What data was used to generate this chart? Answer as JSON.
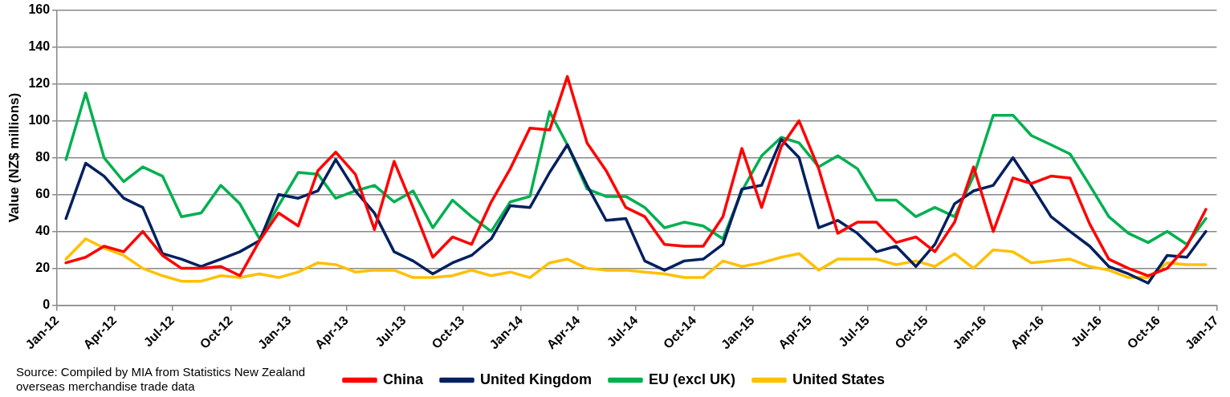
{
  "chart_data": {
    "type": "line",
    "ylabel": "Value (NZ$ millions)",
    "x": [
      "2012-01-15",
      "2012-02-15",
      "2012-03-15",
      "2012-04-15",
      "2012-05-15",
      "2012-06-15",
      "2012-07-15",
      "2012-08-15",
      "2012-09-15",
      "2012-10-15",
      "2012-11-15",
      "2012-12-15",
      "2013-01-15",
      "2013-02-15",
      "2013-03-15",
      "2013-04-15",
      "2013-05-15",
      "2013-06-15",
      "2013-07-15",
      "2013-08-15",
      "2013-09-15",
      "2013-10-15",
      "2013-11-15",
      "2013-12-15",
      "2014-01-15",
      "2014-02-15",
      "2014-03-15",
      "2014-04-15",
      "2014-05-15",
      "2014-06-15",
      "2014-07-15",
      "2014-08-15",
      "2014-09-15",
      "2014-10-15",
      "2014-11-15",
      "2014-12-15",
      "2015-01-15",
      "2015-02-15",
      "2015-03-15",
      "2015-04-15",
      "2015-05-15",
      "2015-06-15",
      "2015-07-15",
      "2015-08-15",
      "2015-09-15",
      "2015-10-15",
      "2015-11-15",
      "2015-12-15",
      "2016-01-15",
      "2016-02-15",
      "2016-03-15",
      "2016-04-15",
      "2016-05-15",
      "2016-06-15",
      "2016-07-15",
      "2016-08-15",
      "2016-09-15",
      "2016-10-15",
      "2016-11-15",
      "2016-12-15"
    ],
    "series": [
      {
        "name": "China",
        "color": "#ff0000",
        "values": [
          23,
          26,
          32,
          29,
          40,
          27,
          20,
          20,
          21,
          16,
          35,
          50,
          43,
          73,
          83,
          71,
          41,
          78,
          53,
          26,
          37,
          33,
          56,
          74,
          96,
          95,
          124,
          88,
          73,
          53,
          48,
          33,
          32,
          32,
          48,
          85,
          53,
          86,
          100,
          74,
          39,
          45,
          45,
          34,
          37,
          29,
          45,
          75,
          40,
          69,
          66,
          70,
          69,
          44,
          25,
          20,
          16,
          20,
          32,
          52
        ]
      },
      {
        "name": "United Kingdom",
        "color": "#002060",
        "values": [
          47,
          77,
          70,
          58,
          53,
          28,
          25,
          21,
          25,
          29,
          35,
          60,
          58,
          62,
          79,
          62,
          50,
          29,
          24,
          17,
          23,
          27,
          36,
          54,
          53,
          72,
          87,
          65,
          46,
          47,
          24,
          19,
          24,
          25,
          33,
          63,
          65,
          90,
          80,
          42,
          46,
          39,
          29,
          32,
          21,
          33,
          55,
          62,
          65,
          80,
          65,
          48,
          40,
          32,
          21,
          17,
          12,
          27,
          26,
          40
        ]
      },
      {
        "name": "EU (excl UK)",
        "color": "#00b050",
        "values": [
          79,
          115,
          80,
          67,
          75,
          70,
          48,
          50,
          65,
          55,
          36,
          54,
          72,
          71,
          58,
          62,
          65,
          56,
          62,
          42,
          57,
          48,
          40,
          56,
          59,
          105,
          87,
          63,
          59,
          59,
          53,
          42,
          45,
          43,
          36,
          62,
          81,
          91,
          88,
          75,
          81,
          74,
          57,
          57,
          48,
          53,
          48,
          70,
          103,
          103,
          92,
          87,
          82,
          65,
          48,
          39,
          34,
          40,
          33,
          47
        ]
      },
      {
        "name": "United States",
        "color": "#ffc000",
        "values": [
          25,
          36,
          31,
          27,
          20,
          16,
          13,
          13,
          16,
          15,
          17,
          15,
          18,
          23,
          22,
          18,
          19,
          19,
          15,
          15,
          16,
          19,
          16,
          18,
          15,
          23,
          25,
          20,
          19,
          19,
          18,
          17,
          15,
          15,
          24,
          21,
          23,
          26,
          28,
          19,
          25,
          25,
          25,
          22,
          24,
          21,
          28,
          20,
          30,
          29,
          23,
          24,
          25,
          21,
          19,
          15,
          15,
          23,
          22,
          22
        ]
      }
    ],
    "xlim": [
      "2012-01-01",
      "2017-01-01"
    ],
    "xticks": [
      {
        "value": "2012-01-01",
        "label": "Jan-12"
      },
      {
        "value": "2012-04-01",
        "label": "Apr-12"
      },
      {
        "value": "2012-07-01",
        "label": "Jul-12"
      },
      {
        "value": "2012-10-01",
        "label": "Oct-12"
      },
      {
        "value": "2013-01-01",
        "label": "Jan-13"
      },
      {
        "value": "2013-04-01",
        "label": "Apr-13"
      },
      {
        "value": "2013-07-01",
        "label": "Jul-13"
      },
      {
        "value": "2013-10-01",
        "label": "Oct-13"
      },
      {
        "value": "2014-01-01",
        "label": "Jan-14"
      },
      {
        "value": "2014-04-01",
        "label": "Apr-14"
      },
      {
        "value": "2014-07-01",
        "label": "Jul-14"
      },
      {
        "value": "2014-10-01",
        "label": "Oct-14"
      },
      {
        "value": "2015-01-01",
        "label": "Jan-15"
      },
      {
        "value": "2015-04-01",
        "label": "Apr-15"
      },
      {
        "value": "2015-07-01",
        "label": "Jul-15"
      },
      {
        "value": "2015-10-01",
        "label": "Oct-15"
      },
      {
        "value": "2016-01-01",
        "label": "Jan-16"
      },
      {
        "value": "2016-04-01",
        "label": "Apr-16"
      },
      {
        "value": "2016-07-01",
        "label": "Jul-16"
      },
      {
        "value": "2016-10-01",
        "label": "Oct-16"
      },
      {
        "value": "2017-01-01",
        "label": "Jan-17"
      }
    ],
    "ylim": [
      0,
      160
    ],
    "yticks": [
      0,
      20,
      40,
      60,
      80,
      100,
      120,
      140,
      160
    ],
    "grid": "y",
    "legend": "bottom",
    "marker": "none",
    "line_style": "solid",
    "annotations": [
      "Source: Compiled by MIA from Statistics New Zealand overseas merchandise trade data"
    ]
  }
}
